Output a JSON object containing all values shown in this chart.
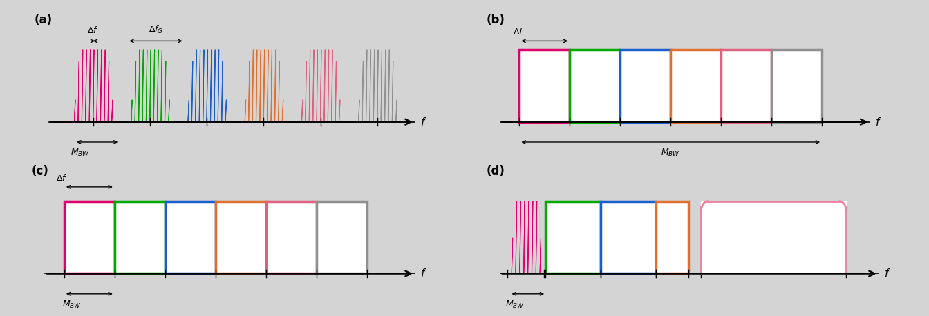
{
  "bg_color": "#d4d4d4",
  "colors": [
    "#e0006a",
    "#00aa00",
    "#1a5fcc",
    "#e07030",
    "#e06080",
    "#909090"
  ],
  "pink_light": "#f080a0",
  "panel_labels": [
    "(a)",
    "(b)",
    "(c)",
    "(d)"
  ]
}
